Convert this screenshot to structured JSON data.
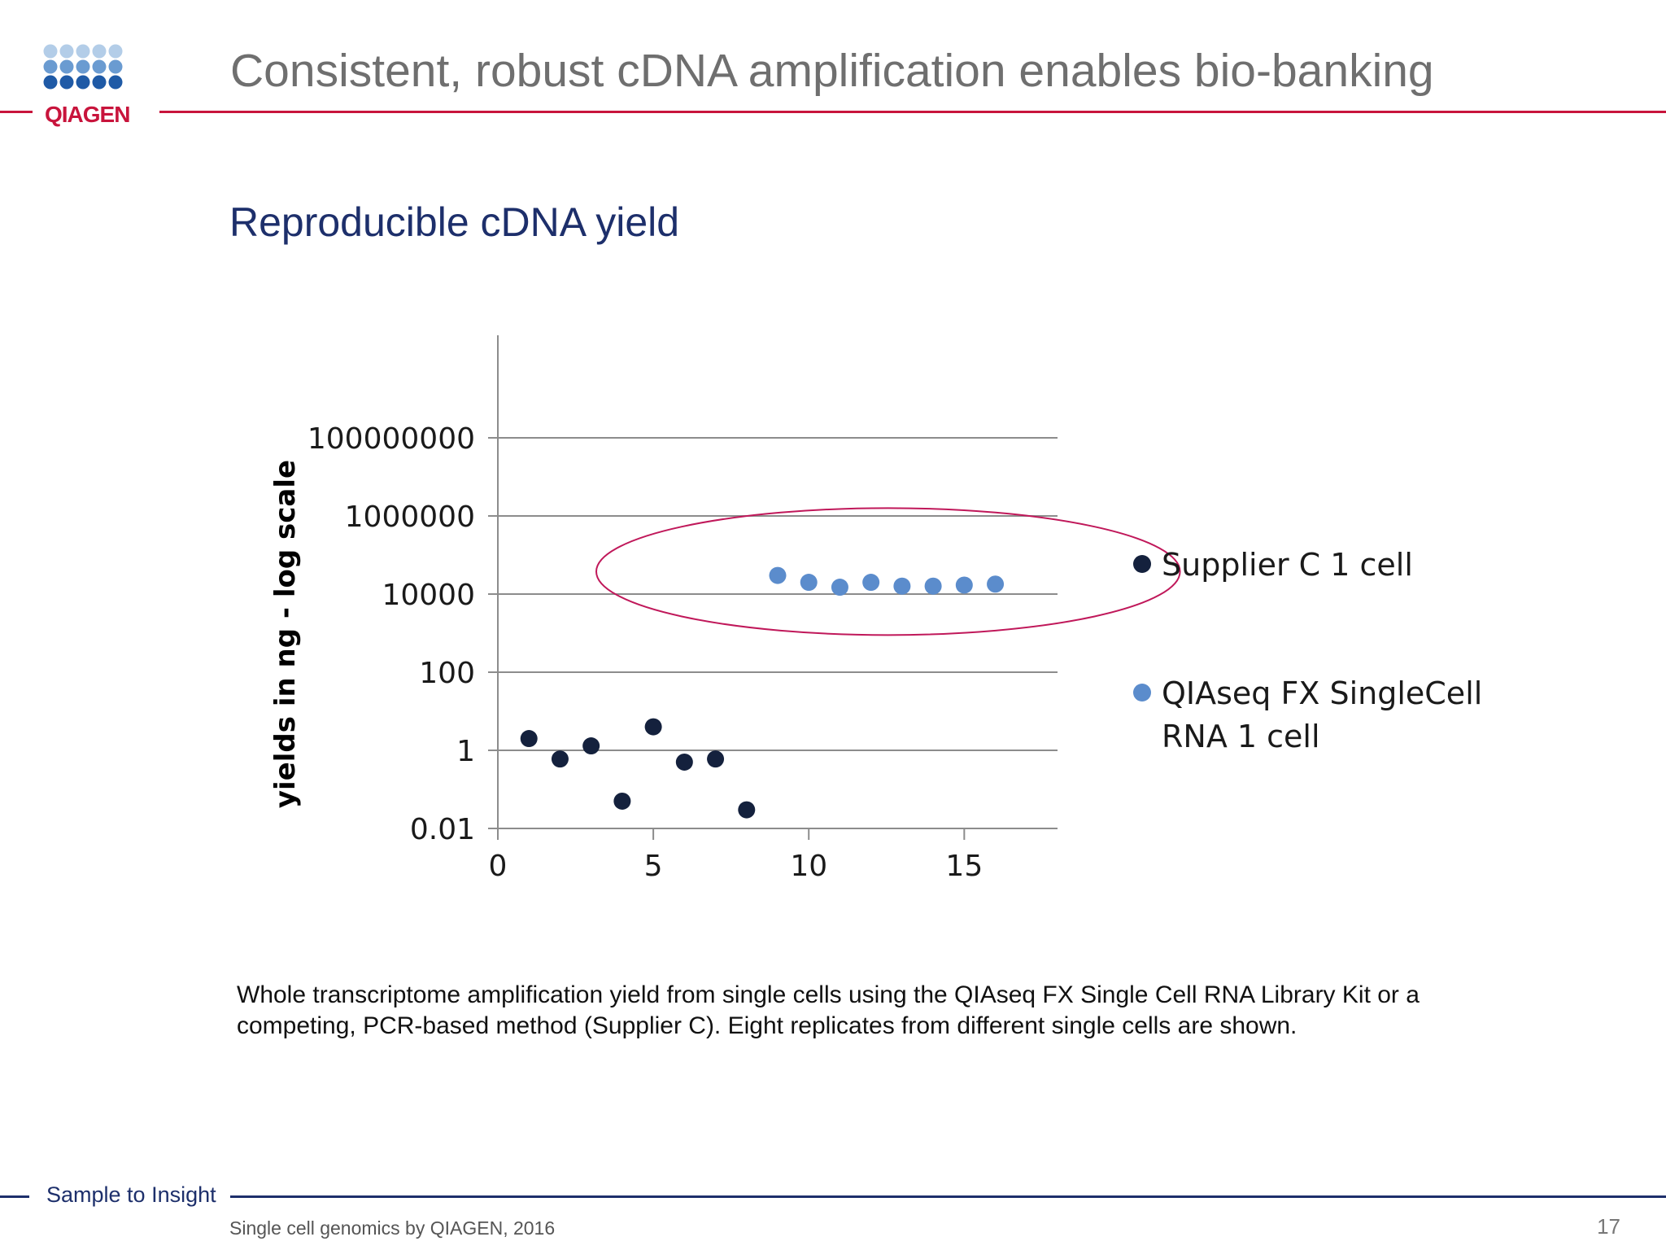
{
  "slide": {
    "title": "Consistent, robust cDNA amplification enables bio-banking",
    "subtitle": "Reproducible cDNA yield",
    "caption_lines": [
      "Whole transcriptome amplification yield from single cells using the QIAseq FX Single Cell RNA Library Kit or a",
      "competing, PCR-based method (Supplier C). Eight replicates from different single cells are shown."
    ],
    "tagline": "Sample to Insight",
    "footer_note": "Single cell genomics by QIAGEN, 2016",
    "page_number": "17",
    "logo_text": "QIAGEN"
  },
  "colors": {
    "accent_red": "#c8143c",
    "brand_navy": "#1d2f6b",
    "supplier_c": "#14213d",
    "qiaseq": "#5b8ccc",
    "highlight_ellipse": "#c0185a"
  },
  "chart_data": {
    "type": "scatter",
    "title": "",
    "xlabel": "",
    "ylabel": "yields in ng - log scale",
    "y_scale": "log",
    "xlim": [
      0,
      18
    ],
    "ylim": [
      0.01,
      1000000000
    ],
    "x_ticks": [
      0,
      5,
      10,
      15
    ],
    "x_tick_labels": [
      "0",
      "5",
      "10",
      "15"
    ],
    "y_ticks": [
      0.01,
      1,
      100,
      10000,
      1000000,
      100000000
    ],
    "y_tick_labels": [
      "0.01",
      "1",
      "100",
      "10000",
      "1000000",
      "100000000"
    ],
    "grid": "horizontal",
    "legend_position": "right",
    "series": [
      {
        "name": "Supplier C 1 cell",
        "color": "#14213d",
        "x": [
          1,
          2,
          3,
          4,
          5,
          6,
          7,
          8
        ],
        "y": [
          2,
          0.6,
          1.3,
          0.05,
          4,
          0.5,
          0.6,
          0.03
        ]
      },
      {
        "name": "QIAseq FX SingleCell RNA 1 cell",
        "legend_lines": [
          "QIAseq FX SingleCell",
          "RNA 1 cell"
        ],
        "color": "#5b8ccc",
        "x": [
          9,
          10,
          11,
          12,
          13,
          14,
          15,
          16
        ],
        "y": [
          30000,
          20000,
          15000,
          20000,
          16000,
          16000,
          17000,
          18000
        ]
      }
    ],
    "annotations": [
      {
        "type": "ellipse",
        "note": "encircles QIAseq points",
        "color": "#c0185a"
      }
    ]
  }
}
